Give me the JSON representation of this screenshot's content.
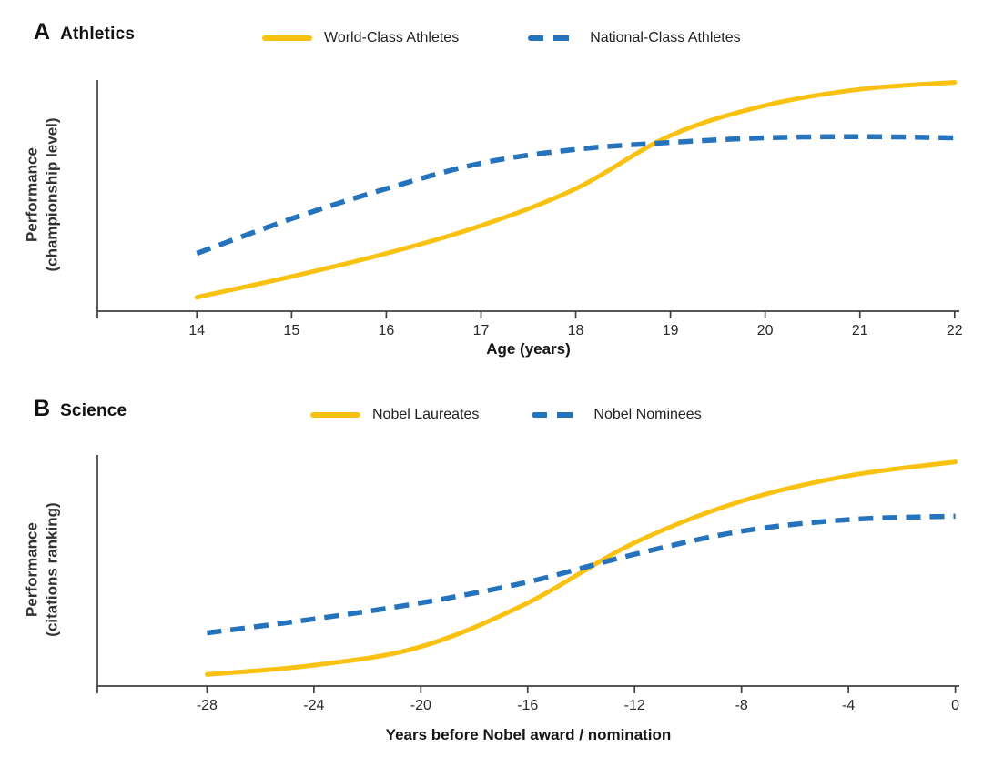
{
  "chart_data": [
    {
      "type": "line",
      "panel_label": "A",
      "title": "Athletics",
      "xlabel": "Age (years)",
      "ylabel": "Performance\n(championship level)",
      "xlim": [
        12.95,
        22.05
      ],
      "ylim": [
        0,
        1
      ],
      "x_ticks": [
        14,
        15,
        16,
        17,
        18,
        19,
        20,
        21,
        22
      ],
      "x": [
        14,
        15,
        16,
        17,
        18,
        19,
        20,
        21,
        22
      ],
      "grid": false,
      "legend_position": "top",
      "series": [
        {
          "name": "World-Class Athletes",
          "color": "#F9C213",
          "style": "solid",
          "values": [
            0.06,
            0.15,
            0.25,
            0.37,
            0.53,
            0.76,
            0.89,
            0.96,
            0.99
          ]
        },
        {
          "name": "National-Class Athletes",
          "color": "#2473BC",
          "style": "dashed",
          "values": [
            0.25,
            0.4,
            0.53,
            0.64,
            0.7,
            0.73,
            0.75,
            0.755,
            0.75
          ]
        }
      ]
    },
    {
      "type": "line",
      "panel_label": "B",
      "title": "Science",
      "xlabel": "Years before Nobel award / nomination",
      "ylabel": "Performance\n(citations ranking)",
      "xlim": [
        -32.1,
        0.15
      ],
      "ylim": [
        0,
        1
      ],
      "x_ticks": [
        -28,
        -24,
        -20,
        -16,
        -12,
        -8,
        -4,
        0
      ],
      "x": [
        -28,
        -24,
        -20,
        -16,
        -12,
        -8,
        -4,
        0
      ],
      "grid": false,
      "legend_position": "top",
      "series": [
        {
          "name": "Nobel Laureates",
          "color": "#F9C213",
          "style": "solid",
          "values": [
            0.05,
            0.09,
            0.17,
            0.36,
            0.62,
            0.8,
            0.91,
            0.97
          ]
        },
        {
          "name": "Nobel Nominees",
          "color": "#2473BC",
          "style": "dashed",
          "values": [
            0.23,
            0.29,
            0.36,
            0.45,
            0.57,
            0.67,
            0.72,
            0.735
          ]
        }
      ]
    }
  ]
}
